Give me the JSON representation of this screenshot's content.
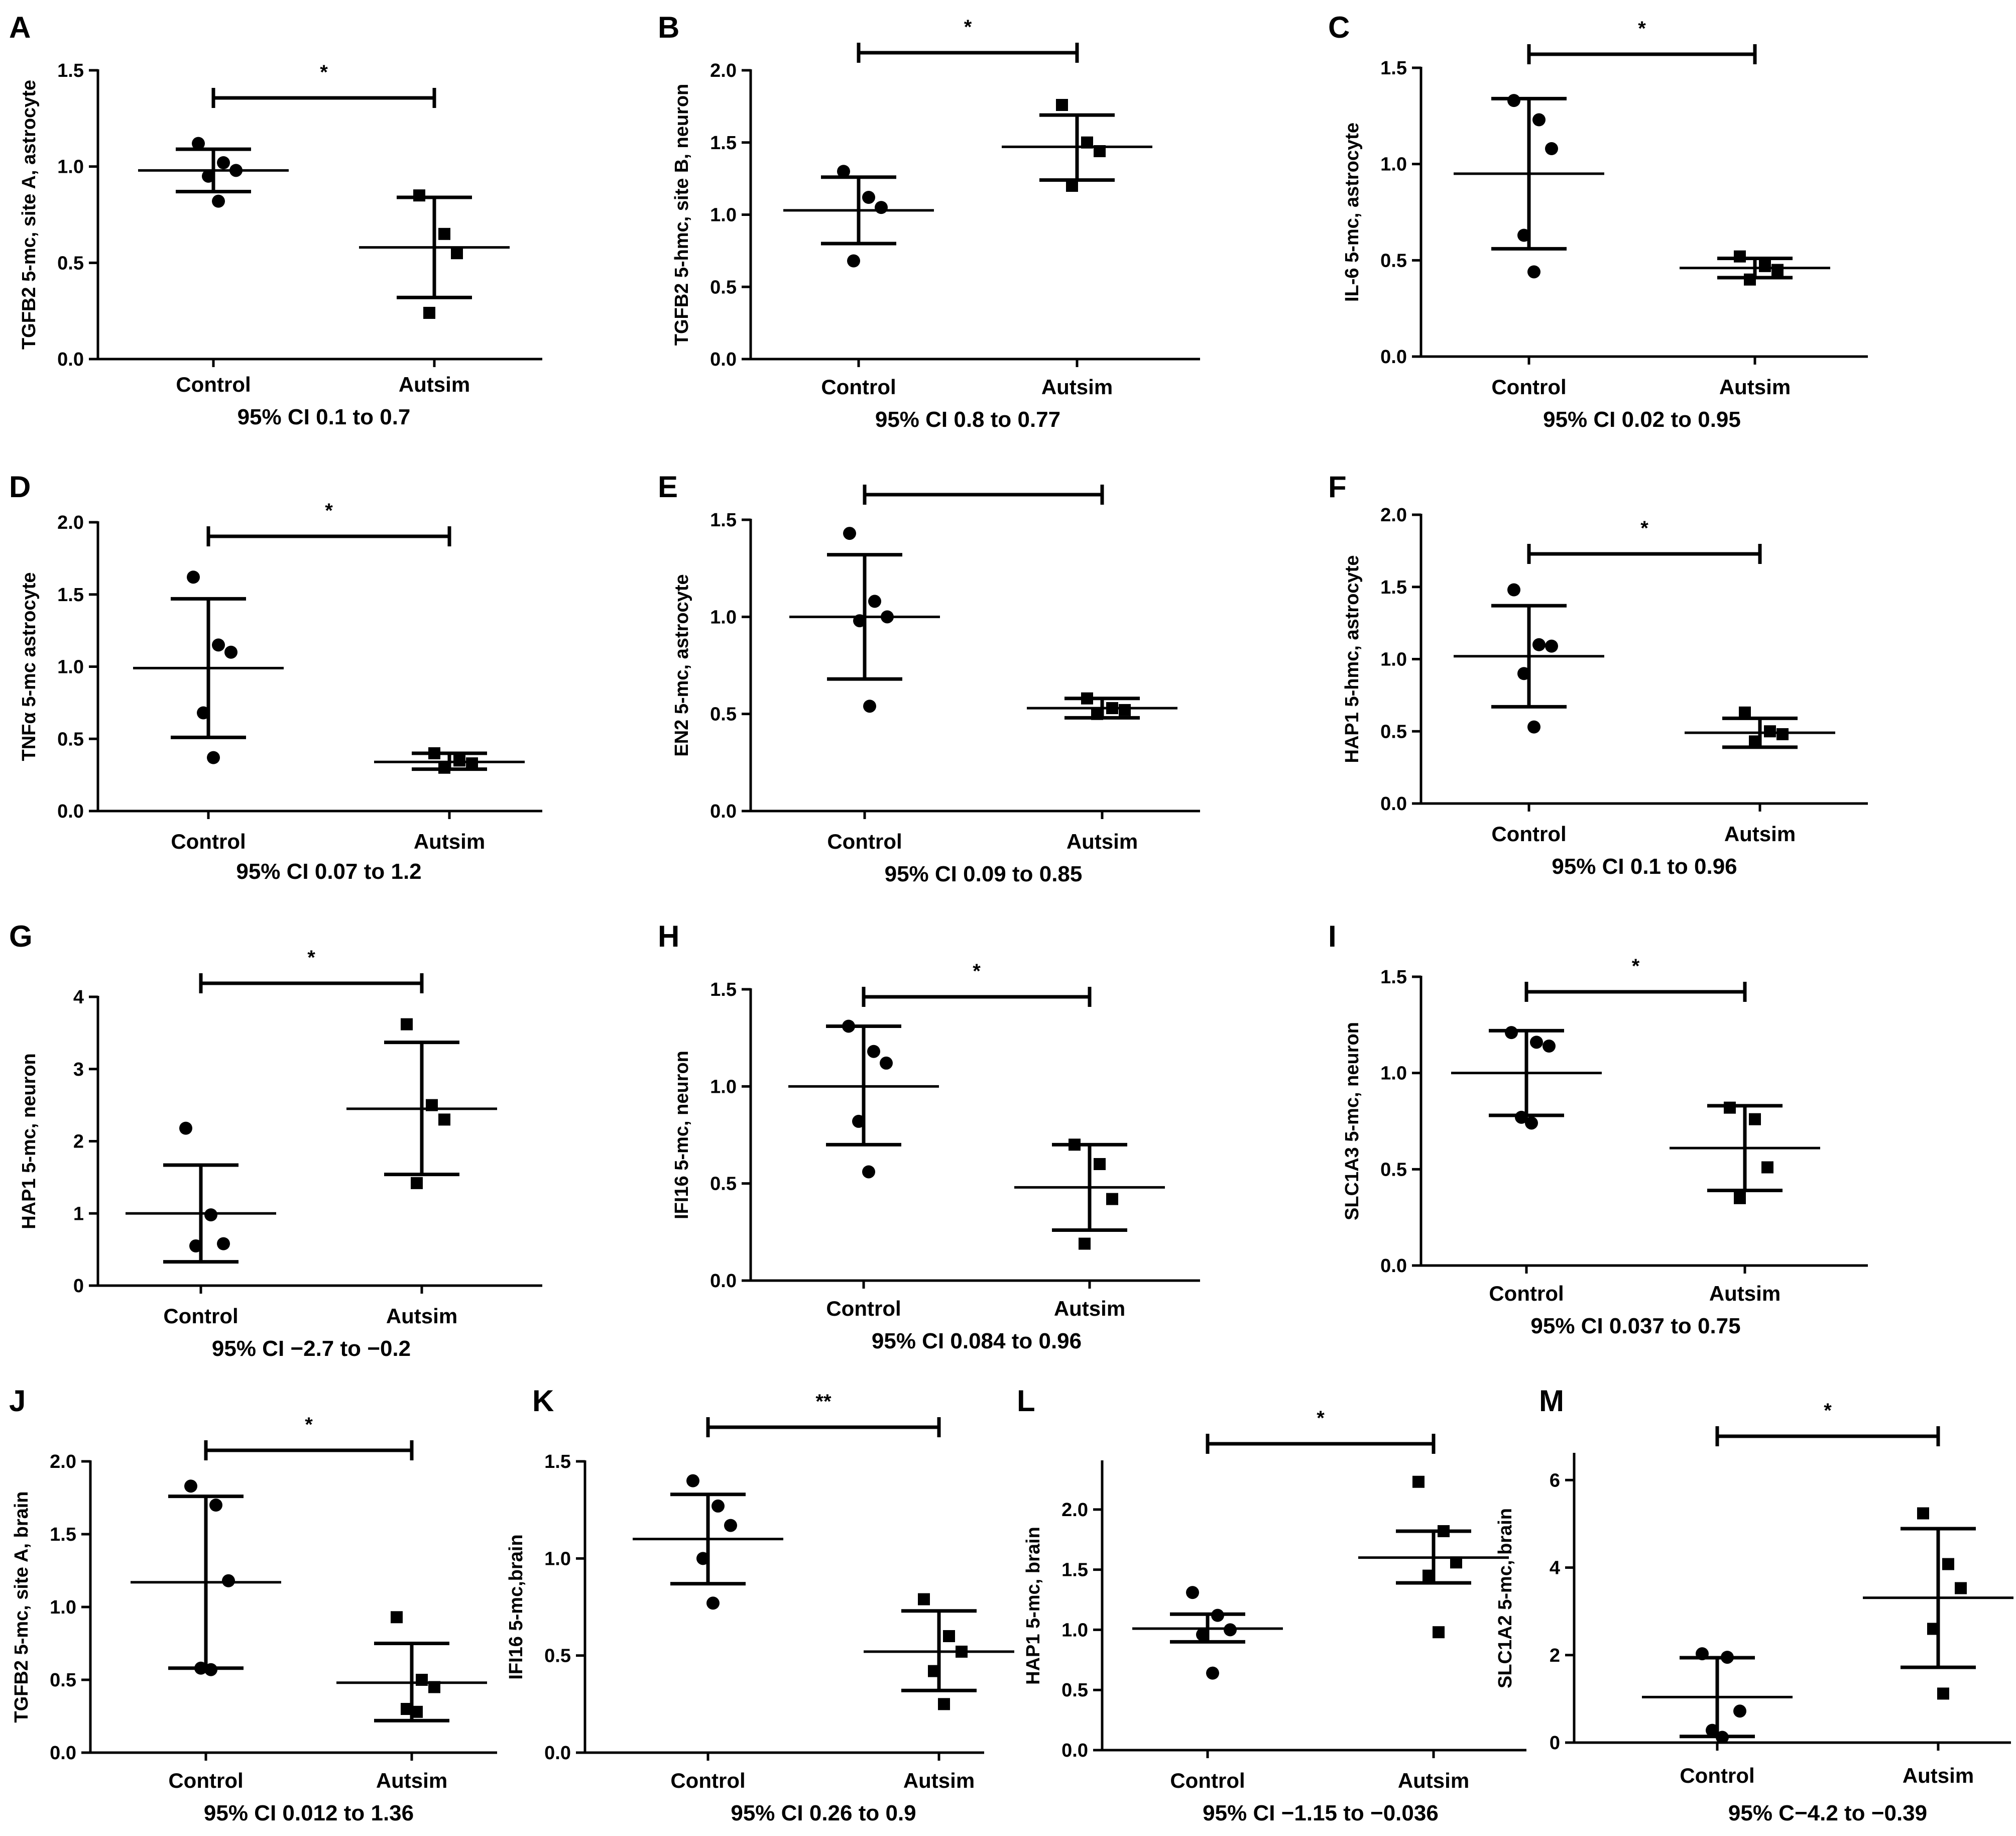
{
  "figure": {
    "panel_count": 13
  },
  "chart_data": [
    {
      "id": "A",
      "type": "scatter",
      "title": "",
      "panel_label": "A",
      "ylabel": "TGFB2 5-mc, site A, astrocyte",
      "underline": "",
      "categories": [
        "Control",
        "Autsim"
      ],
      "ylim": [
        0,
        1.5
      ],
      "yticks": [
        0.0,
        0.5,
        1.0,
        1.5
      ],
      "ytick_labels": [
        "0.0",
        "0.5",
        "1.0",
        "1.5"
      ],
      "series": [
        {
          "name": "Control",
          "marker": "circle",
          "values": [
            1.12,
            1.02,
            0.98,
            0.95,
            0.82
          ],
          "mean": 0.98,
          "sd_low": 0.87,
          "sd_high": 1.09
        },
        {
          "name": "Autsim",
          "marker": "square",
          "values": [
            0.85,
            0.65,
            0.55,
            0.24
          ],
          "mean": 0.58,
          "sd_low": 0.32,
          "sd_high": 0.84
        }
      ],
      "significance": "*",
      "footer": "95% CI  0.1 to 0.7"
    },
    {
      "id": "B",
      "type": "scatter",
      "title": "",
      "panel_label": "B",
      "ylabel": "TGFB2 5-hmc, site B, neuron",
      "underline": "hmc",
      "categories": [
        "Control",
        "Autsim"
      ],
      "ylim": [
        0,
        2.0
      ],
      "yticks": [
        0.0,
        0.5,
        1.0,
        1.5,
        2.0
      ],
      "ytick_labels": [
        "0.0",
        "0.5",
        "1.0",
        "1.5",
        "2.0"
      ],
      "series": [
        {
          "name": "Control",
          "marker": "circle",
          "values": [
            1.3,
            1.12,
            1.05,
            0.68
          ],
          "mean": 1.03,
          "sd_low": 0.8,
          "sd_high": 1.26
        },
        {
          "name": "Autsim",
          "marker": "square",
          "values": [
            1.76,
            1.5,
            1.44,
            1.2
          ],
          "mean": 1.47,
          "sd_low": 1.24,
          "sd_high": 1.69
        }
      ],
      "significance": "*",
      "footer": "95% CI 0.8 to 0.77"
    },
    {
      "id": "C",
      "type": "scatter",
      "title": "",
      "panel_label": "C",
      "ylabel": "IL-6 5-mc,  astrocyte",
      "underline": "",
      "categories": [
        "Control",
        "Autsim"
      ],
      "ylim": [
        0,
        1.5
      ],
      "yticks": [
        0.0,
        0.5,
        1.0,
        1.5
      ],
      "ytick_labels": [
        "0.0",
        "0.5",
        "1.0",
        "1.5"
      ],
      "series": [
        {
          "name": "Control",
          "marker": "circle",
          "values": [
            1.33,
            1.23,
            1.08,
            0.63,
            0.44
          ],
          "mean": 0.95,
          "sd_low": 0.56,
          "sd_high": 1.34
        },
        {
          "name": "Autsim",
          "marker": "square",
          "values": [
            0.52,
            0.47,
            0.45,
            0.4
          ],
          "mean": 0.46,
          "sd_low": 0.41,
          "sd_high": 0.51
        }
      ],
      "significance": "*",
      "footer": "95% CI 0.02 to 0.95"
    },
    {
      "id": "D",
      "type": "scatter",
      "title": "",
      "panel_label": "D",
      "ylabel": "TNFα 5-mc astrocyte",
      "underline": "",
      "categories": [
        "Control",
        "Autsim"
      ],
      "ylim": [
        0,
        2.0
      ],
      "yticks": [
        0.0,
        0.5,
        1.0,
        1.5,
        2.0
      ],
      "ytick_labels": [
        "0.0",
        "0.5",
        "1.0",
        "1.5",
        "2.0"
      ],
      "series": [
        {
          "name": "Control",
          "marker": "circle",
          "values": [
            1.62,
            1.15,
            1.1,
            0.68,
            0.37
          ],
          "mean": 0.99,
          "sd_low": 0.51,
          "sd_high": 1.47
        },
        {
          "name": "Autsim",
          "marker": "square",
          "values": [
            0.4,
            0.35,
            0.33,
            0.3
          ],
          "mean": 0.34,
          "sd_low": 0.29,
          "sd_high": 0.4
        }
      ],
      "significance": "*",
      "footer": "95% CI 0.07 to 1.2"
    },
    {
      "id": "E",
      "type": "scatter",
      "title": "",
      "panel_label": "E",
      "ylabel": "EN2 5-mc,  astrocyte",
      "underline": "",
      "categories": [
        "Control",
        "Autsim"
      ],
      "ylim": [
        0,
        1.5
      ],
      "yticks": [
        0.0,
        0.5,
        1.0,
        1.5
      ],
      "ytick_labels": [
        "0.0",
        "0.5",
        "1.0",
        "1.5"
      ],
      "series": [
        {
          "name": "Control",
          "marker": "circle",
          "values": [
            1.43,
            1.08,
            1.0,
            0.98,
            0.54
          ],
          "mean": 1.0,
          "sd_low": 0.68,
          "sd_high": 1.32
        },
        {
          "name": "Autsim",
          "marker": "square",
          "values": [
            0.58,
            0.53,
            0.52,
            0.5
          ],
          "mean": 0.53,
          "sd_low": 0.48,
          "sd_high": 0.58
        }
      ],
      "significance": "",
      "footer": "95% CI 0.09 to 0.85"
    },
    {
      "id": "F",
      "type": "scatter",
      "title": "",
      "panel_label": "F",
      "ylabel": "HAP1 5-hmc, astrocyte",
      "underline": "hmc,",
      "categories": [
        "Control",
        "Autsim"
      ],
      "ylim": [
        0,
        2.0
      ],
      "yticks": [
        0.0,
        0.5,
        1.0,
        1.5,
        2.0
      ],
      "ytick_labels": [
        "0.0",
        "0.5",
        "1.0",
        "1.5",
        "2.0"
      ],
      "series": [
        {
          "name": "Control",
          "marker": "circle",
          "values": [
            1.48,
            1.1,
            1.09,
            0.9,
            0.53
          ],
          "mean": 1.02,
          "sd_low": 0.67,
          "sd_high": 1.37
        },
        {
          "name": "Autsim",
          "marker": "square",
          "values": [
            0.63,
            0.5,
            0.48,
            0.43
          ],
          "mean": 0.49,
          "sd_low": 0.39,
          "sd_high": 0.59
        }
      ],
      "significance": "*",
      "footer": "95% CI 0.1 to 0.96"
    },
    {
      "id": "G",
      "type": "scatter",
      "title": "",
      "panel_label": "G",
      "ylabel": "HAP1 5-mc, neuron",
      "underline": "",
      "categories": [
        "Control",
        "Autsim"
      ],
      "ylim": [
        0,
        4
      ],
      "yticks": [
        0,
        1,
        2,
        3,
        4
      ],
      "ytick_labels": [
        "0",
        "1",
        "2",
        "3",
        "4"
      ],
      "series": [
        {
          "name": "Control",
          "marker": "circle",
          "values": [
            2.18,
            0.98,
            0.58,
            0.55
          ],
          "mean": 1.0,
          "sd_low": 0.33,
          "sd_high": 1.67
        },
        {
          "name": "Autsim",
          "marker": "square",
          "values": [
            3.62,
            2.5,
            2.3,
            1.42
          ],
          "mean": 2.45,
          "sd_low": 1.54,
          "sd_high": 3.37
        }
      ],
      "significance": "*",
      "footer": "95% CI  −2.7 to −0.2"
    },
    {
      "id": "H",
      "type": "scatter",
      "title": "",
      "panel_label": "H",
      "ylabel": "IFI16 5-mc, neuron",
      "underline": "",
      "categories": [
        "Control",
        "Autsim"
      ],
      "ylim": [
        0,
        1.5
      ],
      "yticks": [
        0.0,
        0.5,
        1.0,
        1.5
      ],
      "ytick_labels": [
        "0.0",
        "0.5",
        "1.0",
        "1.5"
      ],
      "series": [
        {
          "name": "Control",
          "marker": "circle",
          "values": [
            1.31,
            1.18,
            1.12,
            0.82,
            0.56
          ],
          "mean": 1.0,
          "sd_low": 0.7,
          "sd_high": 1.31
        },
        {
          "name": "Autsim",
          "marker": "square",
          "values": [
            0.7,
            0.6,
            0.42,
            0.19
          ],
          "mean": 0.48,
          "sd_low": 0.26,
          "sd_high": 0.7
        }
      ],
      "significance": "*",
      "footer": "95% CI 0.084 to 0.96"
    },
    {
      "id": "I",
      "type": "scatter",
      "title": "",
      "panel_label": "I",
      "ylabel": "SLC1A3 5-mc, neuron",
      "underline": "",
      "categories": [
        "Control",
        "Autsim"
      ],
      "ylim": [
        0,
        1.5
      ],
      "yticks": [
        0.0,
        0.5,
        1.0,
        1.5
      ],
      "ytick_labels": [
        "0.0",
        "0.5",
        "1.0",
        "1.5"
      ],
      "series": [
        {
          "name": "Control",
          "marker": "circle",
          "values": [
            1.21,
            1.16,
            1.14,
            0.77,
            0.74
          ],
          "mean": 1.0,
          "sd_low": 0.78,
          "sd_high": 1.22
        },
        {
          "name": "Autsim",
          "marker": "square",
          "values": [
            0.82,
            0.76,
            0.51,
            0.35
          ],
          "mean": 0.61,
          "sd_low": 0.39,
          "sd_high": 0.83
        }
      ],
      "significance": "*",
      "footer": "95% CI 0.037 to 0.75"
    },
    {
      "id": "J",
      "type": "scatter",
      "title": "",
      "panel_label": "J",
      "ylabel": "TGFB2 5-mc, site A, brain",
      "underline": "",
      "categories": [
        "Control",
        "Autsim"
      ],
      "ylim": [
        0,
        2.0
      ],
      "yticks": [
        0.0,
        0.5,
        1.0,
        1.5,
        2.0
      ],
      "ytick_labels": [
        "0.0",
        "0.5",
        "1.0",
        "1.5",
        "2.0"
      ],
      "series": [
        {
          "name": "Control",
          "marker": "circle",
          "values": [
            1.83,
            1.7,
            1.18,
            0.58,
            0.57
          ],
          "mean": 1.17,
          "sd_low": 0.58,
          "sd_high": 1.76
        },
        {
          "name": "Autsim",
          "marker": "square",
          "values": [
            0.93,
            0.5,
            0.45,
            0.3,
            0.28
          ],
          "mean": 0.48,
          "sd_low": 0.22,
          "sd_high": 0.75
        }
      ],
      "significance": "*",
      "footer": "95% CI 0.012 to 1.36"
    },
    {
      "id": "K",
      "type": "scatter",
      "title": "",
      "panel_label": "K",
      "ylabel": "IFI16 5-mc,brain",
      "underline": "",
      "categories": [
        "Control",
        "Autsim"
      ],
      "ylim": [
        0,
        1.5
      ],
      "yticks": [
        0.0,
        0.5,
        1.0,
        1.5
      ],
      "ytick_labels": [
        "0.0",
        "0.5",
        "1.0",
        "1.5"
      ],
      "series": [
        {
          "name": "Control",
          "marker": "circle",
          "values": [
            1.4,
            1.27,
            1.17,
            1.0,
            0.77
          ],
          "mean": 1.1,
          "sd_low": 0.87,
          "sd_high": 1.33
        },
        {
          "name": "Autsim",
          "marker": "square",
          "values": [
            0.79,
            0.6,
            0.52,
            0.42,
            0.25
          ],
          "mean": 0.52,
          "sd_low": 0.32,
          "sd_high": 0.73
        }
      ],
      "significance": "**",
      "footer": "95% CI 0.26 to 0.9"
    },
    {
      "id": "L",
      "type": "scatter",
      "title": "",
      "panel_label": "L",
      "ylabel": "HAP1 5-mc, brain",
      "underline": "",
      "categories": [
        "Control",
        "Autsim"
      ],
      "ylim": [
        0,
        2.4
      ],
      "yticks": [
        0.0,
        0.5,
        1.0,
        1.5,
        2.0
      ],
      "ytick_labels": [
        "0.0",
        "0.5",
        "1.0",
        "1.5",
        "2.0"
      ],
      "series": [
        {
          "name": "Control",
          "marker": "circle",
          "values": [
            1.31,
            1.12,
            1.0,
            0.96,
            0.64
          ],
          "mean": 1.01,
          "sd_low": 0.9,
          "sd_high": 1.13
        },
        {
          "name": "Autsim",
          "marker": "square",
          "values": [
            2.23,
            1.82,
            1.56,
            1.45,
            0.98
          ],
          "mean": 1.6,
          "sd_low": 1.39,
          "sd_high": 1.82
        }
      ],
      "significance": "*",
      "footer": "95% CI  −1.15 to −0.036"
    },
    {
      "id": "M",
      "type": "scatter",
      "title": "",
      "panel_label": "M",
      "ylabel": "SLC1A2 5-mc, brain",
      "underline": "",
      "categories": [
        "Control",
        "Autsim"
      ],
      "ylim": [
        0,
        6.6
      ],
      "yticks": [
        0,
        2,
        4,
        6
      ],
      "ytick_labels": [
        "0",
        "2",
        "4",
        "6"
      ],
      "series": [
        {
          "name": "Control",
          "marker": "circle",
          "values": [
            2.03,
            1.95,
            0.72,
            0.28,
            0.12
          ],
          "mean": 1.04,
          "sd_low": 0.14,
          "sd_high": 1.94
        },
        {
          "name": "Autsim",
          "marker": "square",
          "values": [
            5.24,
            4.08,
            3.53,
            2.6,
            1.12
          ],
          "mean": 3.31,
          "sd_low": 1.72,
          "sd_high": 4.89
        }
      ],
      "significance": "*",
      "footer": "95% C−4.2 to −0.39"
    }
  ]
}
